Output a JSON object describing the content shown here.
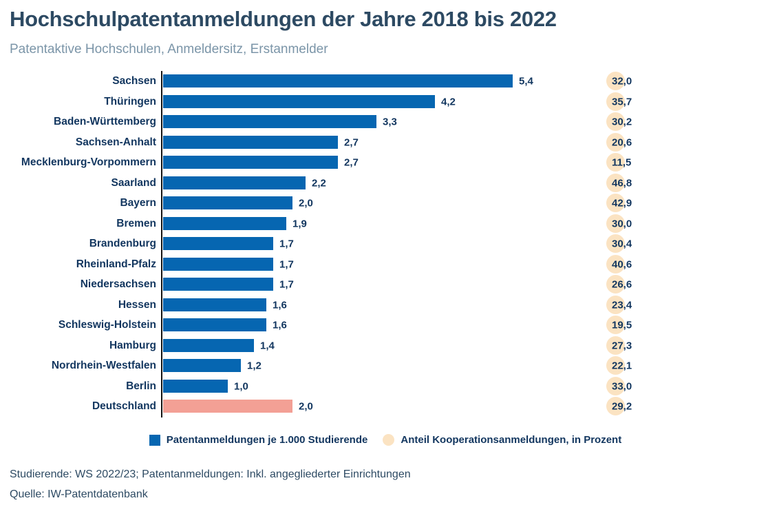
{
  "header": {
    "title": "Hochschulpatentanmeldungen der Jahre 2018 bis 2022",
    "subtitle": "Patentaktive Hochschulen, Anmeldersitz, Erstanmelder"
  },
  "chart_data": {
    "type": "bar",
    "orientation": "horizontal",
    "title": "Hochschulpatentanmeldungen der Jahre 2018 bis 2022",
    "categories": [
      "Sachsen",
      "Thüringen",
      "Baden-Württemberg",
      "Sachsen-Anhalt",
      "Mecklenburg-Vorpommern",
      "Saarland",
      "Bayern",
      "Bremen",
      "Brandenburg",
      "Rheinland-Pfalz",
      "Niedersachsen",
      "Hessen",
      "Schleswig-Holstein",
      "Hamburg",
      "Nordrhein-Westfalen",
      "Berlin",
      "Deutschland"
    ],
    "series": [
      {
        "name": "Patentanmeldungen je 1.000 Studierende",
        "values": [
          5.4,
          4.2,
          3.3,
          2.7,
          2.7,
          2.2,
          2.0,
          1.9,
          1.7,
          1.7,
          1.7,
          1.6,
          1.6,
          1.4,
          1.2,
          1.0,
          2.0
        ]
      },
      {
        "name": "Anteil Kooperationsanmeldungen, in Prozent",
        "values": [
          32.0,
          35.7,
          30.2,
          20.6,
          11.5,
          46.8,
          42.9,
          30.0,
          30.4,
          40.6,
          26.6,
          23.4,
          19.5,
          27.3,
          22.1,
          33.0,
          29.2
        ]
      }
    ],
    "highlight_category": "Deutschland",
    "xlim": [
      0,
      5.6
    ],
    "grid": false,
    "legend_position": "bottom",
    "decimal_separator": ",",
    "colors": {
      "bar": "#0666b1",
      "highlight_bar": "#f3a095",
      "cooperation_circle": "#fbe3c2",
      "label_text": "#12365f",
      "title_text": "#2d4a63",
      "subtitle_text": "#7b95a8"
    }
  },
  "legend": {
    "items": [
      {
        "swatch": "square",
        "label": "Patentanmeldungen je 1.000 Studierende"
      },
      {
        "swatch": "circle",
        "label": "Anteil Kooperationsanmeldungen, in Prozent"
      }
    ]
  },
  "footnotes": {
    "line1": "Studierende: WS 2022/23; Patentanmeldungen: Inkl. angegliederter Einrichtungen",
    "line2": "Quelle: IW-Patentdatenbank"
  }
}
